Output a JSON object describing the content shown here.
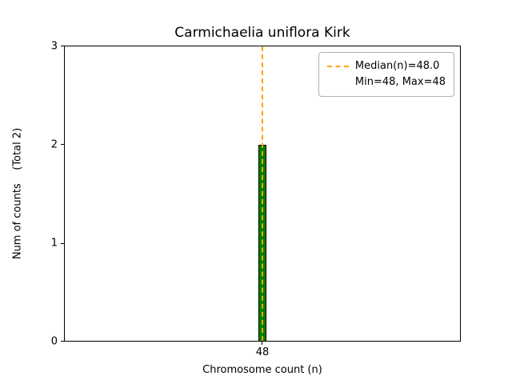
{
  "chart_data": {
    "type": "bar",
    "title": "Carmichaelia uniflora Kirk",
    "xlabel": "Chromosome count (n)",
    "ylabel": "Num of counts    (Total 2)",
    "categories": [
      "48"
    ],
    "values": [
      2
    ],
    "total_counts": 2,
    "ylim": [
      0,
      3
    ],
    "yticks": [
      "3",
      "2",
      "1",
      "0"
    ],
    "xticks": [
      "48"
    ],
    "bar_color": "#008000",
    "bar_edge_color": "#000000",
    "grid": false,
    "median_line": {
      "value": 48.0,
      "color": "#ffa500",
      "style": "dashed",
      "orientation": "vertical"
    },
    "stats": {
      "median": 48.0,
      "min": 48,
      "max": 48
    },
    "legend": {
      "position": "upper right",
      "entries": [
        {
          "label": "Median(n)=48.0",
          "has_line": true
        },
        {
          "label": "Min=48, Max=48",
          "has_line": false
        }
      ]
    }
  }
}
